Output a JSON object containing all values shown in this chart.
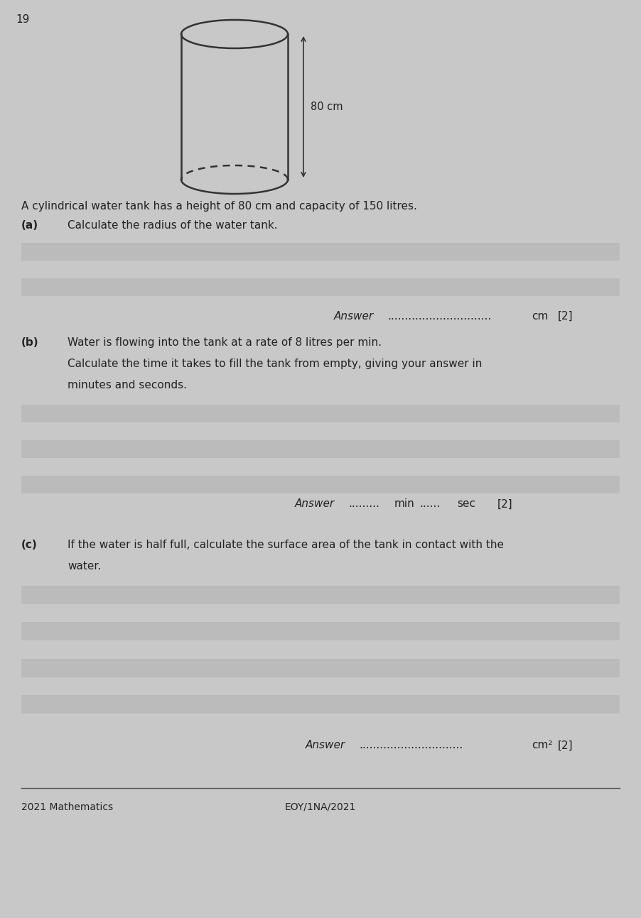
{
  "page_number": "19",
  "background_color": "#c8c8c8",
  "text_color": "#222222",
  "question_intro": "A cylindrical water tank has a height of 80 cm and capacity of 150 litres.",
  "part_a_label": "(a)",
  "part_a_text": "Calculate the radius of the water tank.",
  "part_a_answer_label": "Answer",
  "part_a_answer_dots": "..............................",
  "part_a_answer_unit": "cm",
  "part_a_marks": "[2]",
  "part_b_label": "(b)",
  "part_b_line1": "Water is flowing into the tank at a rate of 8 litres per min.",
  "part_b_line2": "Calculate the time it takes to fill the tank from empty, giving your answer in",
  "part_b_line3": "minutes and seconds.",
  "part_b_answer_label": "Answer",
  "part_b_answer_dots1": ".........",
  "part_b_mid": "min",
  "part_b_answer_dots2": "......",
  "part_b_answer_unit": "sec",
  "part_b_marks": "[2]",
  "part_c_label": "(c)",
  "part_c_line1": "If the water is half full, calculate the surface area of the tank in contact with the",
  "part_c_line2": "water.",
  "part_c_answer_label": "Answer",
  "part_c_answer_dots": "..............................",
  "part_c_answer_unit": "cm²",
  "part_c_marks": "[2]",
  "footer_left": "2021 Mathematics",
  "footer_center": "EOY/1NA/2021",
  "cylinder_height_label": "80 cm",
  "line_stripe_color": "#bbbbbb",
  "line_color": "#aaaaaa"
}
